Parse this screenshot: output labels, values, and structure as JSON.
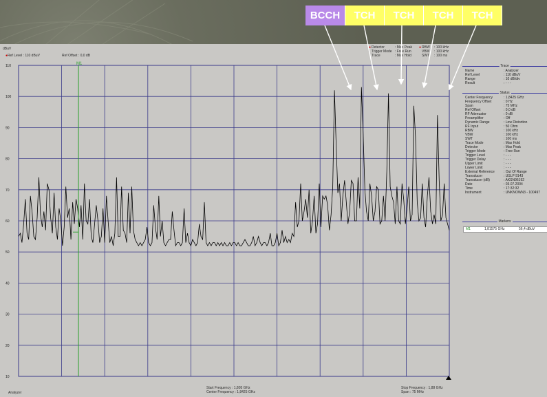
{
  "header": {
    "unit": "dBuV",
    "ref_level": "Ref Level : 110 dBuV",
    "ref_offset": "Ref Offset : 0,0 dB",
    "settings": [
      {
        "label": "Detector",
        "value": ": Max Peak",
        "red": true
      },
      {
        "label": "Trigger Mode",
        "value": ": Free Run",
        "red": false
      },
      {
        "label": "Trace",
        "value": ": Max Hold",
        "red": false
      }
    ],
    "bw": [
      {
        "label": "RBW",
        "value": ": 100 kHz",
        "red": true
      },
      {
        "label": "VBW",
        "value": ": 100 kHz",
        "red": false
      },
      {
        "label": "SWT",
        "value": ": 100 ms",
        "red": false
      }
    ]
  },
  "channel_tags": [
    "BCCH",
    "TCH",
    "TCH",
    "TCH",
    "TCH"
  ],
  "y_ticks": [
    "110",
    "100",
    "90",
    "80",
    "70",
    "60",
    "50",
    "40",
    "30",
    "20",
    "10"
  ],
  "marker_label": "M1",
  "trace_section": {
    "title": "Trace",
    "rows": [
      {
        "k": "Name",
        "v": ": Analyzer"
      },
      {
        "k": "Ref Level",
        "v": ": 110        dBuV"
      },
      {
        "k": "Range",
        "v": ": 10 dB/div"
      },
      {
        "k": "Result",
        "v": ": - - -"
      }
    ]
  },
  "status_section": {
    "title": "Status",
    "rows": [
      {
        "k": "Center Frequency",
        "v": ": 1,8425 GHz"
      },
      {
        "k": "Frequency Offset",
        "v": ":    0        Hz"
      },
      {
        "k": "Span",
        "v": ":   75        MHz"
      },
      {
        "k": "Ref Offset",
        "v": ":    0,0      dB"
      },
      {
        "k": "RF Attenuator",
        "v": ":    0         dB"
      },
      {
        "k": "Preamplifier",
        "v": ": Off"
      },
      {
        "k": "Dynamic Range",
        "v": ": Low Distortion"
      },
      {
        "k": "RF Input",
        "v": ":   50       Ohm"
      },
      {
        "k": "RBW",
        "v": ": 100        kHz"
      },
      {
        "k": "VBW",
        "v": ": 100        kHz"
      },
      {
        "k": "SWT",
        "v": ": 100        ms"
      },
      {
        "k": "Trace Mode",
        "v": ": Max Hold"
      },
      {
        "k": "Detector",
        "v": ": Max Peak"
      },
      {
        "k": "Trigger Mode",
        "v": ": Free Run"
      },
      {
        "k": "Trigger Level",
        "v": ": - - -"
      },
      {
        "k": "Trigger Delay",
        "v": ": - - -"
      },
      {
        "k": "Upper Limit",
        "v": ": - - -"
      },
      {
        "k": "Lower Limit",
        "v": ": - - -"
      },
      {
        "k": "External Reference",
        "v": ": Out Of Range"
      },
      {
        "k": "Transducer",
        "v": ": USLP 9143"
      },
      {
        "k": "Transducer (dB)",
        "v": ": AKSN95192"
      },
      {
        "k": "Date",
        "v": ": 03.07.2004"
      },
      {
        "k": "Time",
        "v": ": 17:32:32"
      },
      {
        "k": "Instrument",
        "v": ": UNKNOWN3 - 100497"
      }
    ]
  },
  "markers_section": {
    "title": "Markers",
    "row": {
      "name": "M1",
      "freq": "1,81575 GHz",
      "level": "56,4 dBuV"
    }
  },
  "footer": {
    "app": "Analyzer",
    "start_freq": "Start Frequency    :    1,805 GHz",
    "center_freq": "Center Frequency  :  1,8425 GHz",
    "stop_freq": "Stop Frequency :  1,88 GHz",
    "span": "Span                  :    75 MHz"
  },
  "chart_data": {
    "type": "line",
    "ylim": [
      10,
      110
    ],
    "ylabel": "dBuV",
    "x_start": "1,805 GHz",
    "x_stop": "1,88 GHz",
    "marker": {
      "name": "M1",
      "x_frac": 0.139,
      "value": 56.4
    },
    "grid": true,
    "trace_color": "#000000",
    "values": [
      55,
      56,
      53,
      59,
      67,
      56,
      54,
      68,
      63,
      55,
      54,
      61,
      74,
      62,
      58,
      63,
      57,
      72,
      70,
      61,
      56,
      69,
      58,
      54,
      64,
      60,
      52,
      58,
      71,
      61,
      64,
      54,
      66,
      59,
      67,
      64,
      58,
      65,
      54,
      72,
      60,
      59,
      67,
      55,
      53,
      59,
      65,
      60,
      53,
      55,
      64,
      53,
      68,
      60,
      53,
      55,
      52,
      56,
      74,
      55,
      55,
      71,
      57,
      56,
      53,
      69,
      56,
      71,
      57,
      54,
      53,
      52,
      53,
      52,
      53,
      54,
      58,
      53,
      52,
      53,
      65,
      58,
      54,
      68,
      55,
      60,
      53,
      52,
      53,
      54,
      54,
      63,
      57,
      52,
      53,
      53,
      52,
      53,
      64,
      53,
      56,
      53,
      52,
      54,
      53,
      52,
      53,
      59,
      55,
      54,
      66,
      53,
      52,
      53,
      52,
      53,
      53,
      52,
      53,
      52,
      53,
      52,
      53,
      52,
      52,
      53,
      52,
      53,
      53,
      52,
      53,
      52,
      52,
      53,
      54,
      53,
      52,
      52,
      53,
      55,
      52,
      53,
      55,
      53,
      52,
      53,
      53,
      52,
      53,
      56,
      52,
      52,
      53,
      56,
      52,
      53,
      57,
      53,
      55,
      53,
      54,
      53,
      56,
      55,
      66,
      58,
      60,
      72,
      60,
      63,
      67,
      61,
      70,
      56,
      60,
      68,
      56,
      59,
      72,
      58,
      68,
      67,
      68,
      65,
      57,
      62,
      71,
      102,
      85,
      69,
      72,
      60,
      68,
      73,
      66,
      59,
      63,
      73,
      72,
      60,
      60,
      74,
      64,
      103,
      88,
      70,
      63,
      60,
      72,
      68,
      60,
      63,
      71,
      70,
      59,
      60,
      68,
      60,
      76,
      101,
      71,
      68,
      66,
      59,
      71,
      60,
      59,
      72,
      67,
      59,
      64,
      71,
      60,
      62,
      97,
      87,
      66,
      60,
      61,
      72,
      61,
      58,
      68,
      74,
      63,
      59,
      62,
      59,
      94,
      73,
      60,
      62,
      72,
      61,
      59,
      57
    ]
  }
}
